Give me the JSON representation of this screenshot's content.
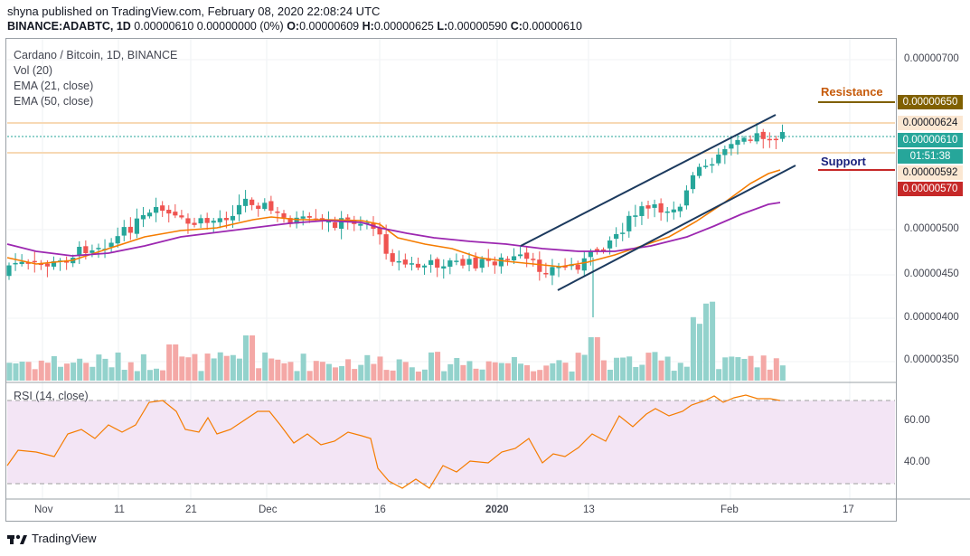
{
  "header": {
    "publisher_line": "shyna published on TradingView.com, February 08, 2020 22:08:24 UTC",
    "ohlc_symbol": "BINANCE:ADABTC, 1D",
    "ohlc_change": "0.00000610 0.00000000 (0%)",
    "ohlc_o_label": "O:",
    "ohlc_o": "0.00000609",
    "ohlc_h_label": "H:",
    "ohlc_h": "0.00000625",
    "ohlc_l_label": "L:",
    "ohlc_l": "0.00000590",
    "ohlc_c_label": "C:",
    "ohlc_c": "0.00000610"
  },
  "legend": {
    "symbol": "Cardano / Bitcoin, 1D, BINANCE",
    "vol": "Vol (20)",
    "ema21": "EMA (21, close)",
    "ema50": "EMA (50, close)",
    "rsi": "RSI (14, close)"
  },
  "annotations": {
    "resistance": "Resistance",
    "support": "Support"
  },
  "price_tags": {
    "resistance": "0.00000650",
    "level_624": "0.00000624",
    "last_price": "0.00000610",
    "countdown": "01:51:38",
    "support": "0.00000592",
    "level_570": "0.00000570"
  },
  "footer": {
    "brand": "TradingView"
  },
  "colors": {
    "up": "#26a69a",
    "down": "#ef5350",
    "ema21": "#f57c00",
    "ema50": "#9c27b0",
    "rsi": "#f57c00",
    "rsi_band": "#f3e5f5",
    "resistance": "#806000",
    "support": "#c62828",
    "channel": "#1c3a5e",
    "resistance_text": "#c65a0a",
    "support_text": "#1a237e"
  },
  "chart_data": [
    {
      "type": "candlestick",
      "title": "Cardano / Bitcoin, 1D, BINANCE",
      "y_axis_ticks": [
        "0.00000700",
        "0.00000650",
        "0.00000624",
        "0.00000610",
        "0.00000592",
        "0.00000570",
        "0.00000500",
        "0.00000450",
        "0.00000400",
        "0.00000350"
      ],
      "x_axis_ticks": [
        "Nov",
        "11",
        "21",
        "Dec",
        "16",
        "2020",
        "13",
        "Feb",
        "17"
      ],
      "last_close": 6.1e-06,
      "resistance_level": 6.5e-06,
      "support_level": 5.92e-06,
      "series": [
        {
          "name": "EMA (21, close)"
        },
        {
          "name": "EMA (50, close)"
        },
        {
          "name": "Vol (20)"
        }
      ]
    },
    {
      "type": "line",
      "title": "RSI (14, close)",
      "y_axis_ticks": [
        "60.00",
        "40.00"
      ],
      "upper_band": 70,
      "lower_band": 30
    }
  ]
}
